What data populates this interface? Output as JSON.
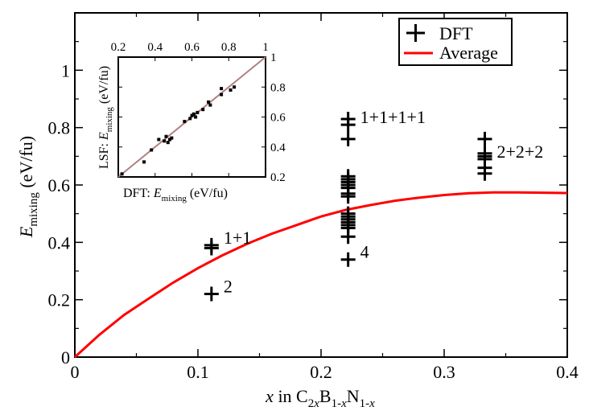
{
  "chart_data": {
    "type": "scatter",
    "xlabel": {
      "main": "x in C",
      "parts": [
        {
          "t": "x",
          "italic": true
        },
        {
          "t": " in C"
        },
        {
          "t": "2x",
          "sub": true
        },
        {
          "t": "B"
        },
        {
          "t": "1-x",
          "sub": true,
          "italic_x": true
        },
        {
          "t": "N"
        },
        {
          "t": "1-x",
          "sub": true
        }
      ]
    },
    "ylabel": {
      "sym": "E",
      "sub": "mixing",
      "unit": "(eV/fu)"
    },
    "xlim": [
      0,
      0.4
    ],
    "ylim": [
      0,
      1.2
    ],
    "xticks": [
      "0",
      "0.1",
      "0.2",
      "0.3",
      "0.4"
    ],
    "xtick_values": [
      0,
      0.1,
      0.2,
      0.3,
      0.4
    ],
    "yticks": [
      "0",
      "0.2",
      "0.4",
      "0.6",
      "0.8",
      "1"
    ],
    "ytick_values": [
      0,
      0.2,
      0.4,
      0.6,
      0.8,
      1.0
    ],
    "series": [
      {
        "name": "DFT",
        "marker": "plus",
        "color": "#000000",
        "points": [
          [
            0.111,
            0.39
          ],
          [
            0.111,
            0.38
          ],
          [
            0.111,
            0.22
          ],
          [
            0.222,
            0.83
          ],
          [
            0.222,
            0.81
          ],
          [
            0.222,
            0.76
          ],
          [
            0.222,
            0.63
          ],
          [
            0.222,
            0.62
          ],
          [
            0.222,
            0.61
          ],
          [
            0.222,
            0.6
          ],
          [
            0.222,
            0.59
          ],
          [
            0.222,
            0.57
          ],
          [
            0.222,
            0.56
          ],
          [
            0.222,
            0.5
          ],
          [
            0.222,
            0.49
          ],
          [
            0.222,
            0.48
          ],
          [
            0.222,
            0.47
          ],
          [
            0.222,
            0.46
          ],
          [
            0.222,
            0.45
          ],
          [
            0.222,
            0.42
          ],
          [
            0.222,
            0.34
          ],
          [
            0.333,
            0.76
          ],
          [
            0.333,
            0.71
          ],
          [
            0.333,
            0.7
          ],
          [
            0.333,
            0.69
          ],
          [
            0.333,
            0.66
          ],
          [
            0.333,
            0.64
          ]
        ]
      },
      {
        "name": "Average",
        "marker": "line",
        "color": "#ff0000",
        "points": [
          [
            0,
            0
          ],
          [
            0.02,
            0.078
          ],
          [
            0.04,
            0.147
          ],
          [
            0.06,
            0.204
          ],
          [
            0.08,
            0.26
          ],
          [
            0.1,
            0.31
          ],
          [
            0.12,
            0.355
          ],
          [
            0.14,
            0.395
          ],
          [
            0.16,
            0.43
          ],
          [
            0.18,
            0.46
          ],
          [
            0.2,
            0.49
          ],
          [
            0.22,
            0.513
          ],
          [
            0.24,
            0.53
          ],
          [
            0.26,
            0.545
          ],
          [
            0.28,
            0.556
          ],
          [
            0.3,
            0.565
          ],
          [
            0.32,
            0.571
          ],
          [
            0.34,
            0.574
          ],
          [
            0.36,
            0.574
          ],
          [
            0.38,
            0.573
          ],
          [
            0.4,
            0.572
          ]
        ]
      }
    ],
    "annotations": [
      {
        "text": "1+1",
        "x": 0.111,
        "y": 0.39
      },
      {
        "text": "2",
        "x": 0.111,
        "y": 0.22
      },
      {
        "text": "1+1+1+1",
        "x": 0.222,
        "y": 0.81
      },
      {
        "text": "4",
        "x": 0.222,
        "y": 0.34
      },
      {
        "text": "2+2+2",
        "x": 0.333,
        "y": 0.69
      }
    ],
    "legend": {
      "position": "top-right",
      "entries": [
        "DFT",
        "Average"
      ]
    },
    "inset": {
      "type": "scatter",
      "xlabel": {
        "prefix": "DFT: ",
        "sym": "E",
        "sub": "mixing",
        "unit": " (eV/fu)"
      },
      "ylabel": {
        "prefix": "LSF: ",
        "sym": "E",
        "sub": "mixing",
        "unit": " (eV/fu)"
      },
      "xlim": [
        0.2,
        1.0
      ],
      "ylim": [
        0.2,
        1.0
      ],
      "xticks": [
        "0.2",
        "0.4",
        "0.6",
        "0.8",
        "1"
      ],
      "xtick_values": [
        0.2,
        0.4,
        0.6,
        0.8,
        1.0
      ],
      "yticks": [
        "0.2",
        "0.4",
        "0.6",
        "0.8",
        "1"
      ],
      "ytick_values": [
        0.2,
        0.4,
        0.6,
        0.8,
        1.0
      ],
      "diagonal_color": "#b08080",
      "points": [
        [
          0.22,
          0.22
        ],
        [
          0.34,
          0.3
        ],
        [
          0.38,
          0.38
        ],
        [
          0.42,
          0.45
        ],
        [
          0.45,
          0.44
        ],
        [
          0.46,
          0.47
        ],
        [
          0.47,
          0.43
        ],
        [
          0.48,
          0.45
        ],
        [
          0.49,
          0.46
        ],
        [
          0.56,
          0.57
        ],
        [
          0.59,
          0.59
        ],
        [
          0.6,
          0.61
        ],
        [
          0.61,
          0.62
        ],
        [
          0.62,
          0.6
        ],
        [
          0.63,
          0.63
        ],
        [
          0.66,
          0.65
        ],
        [
          0.69,
          0.7
        ],
        [
          0.7,
          0.68
        ],
        [
          0.76,
          0.75
        ],
        [
          0.76,
          0.79
        ],
        [
          0.81,
          0.78
        ],
        [
          0.83,
          0.8
        ]
      ]
    }
  }
}
